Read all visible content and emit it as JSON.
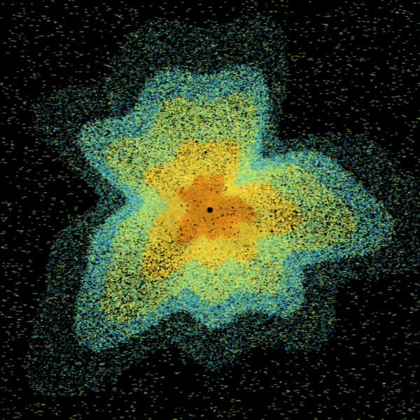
{
  "radar": {
    "background": "#000000",
    "palette": [
      "#1a6fb0",
      "#2aa7c9",
      "#5cc8b0",
      "#9fd86a",
      "#e6ef5a",
      "#f2d83a",
      "#f0b020",
      "#e89018",
      "#d8401a"
    ],
    "center_marker_color": "#000000"
  }
}
